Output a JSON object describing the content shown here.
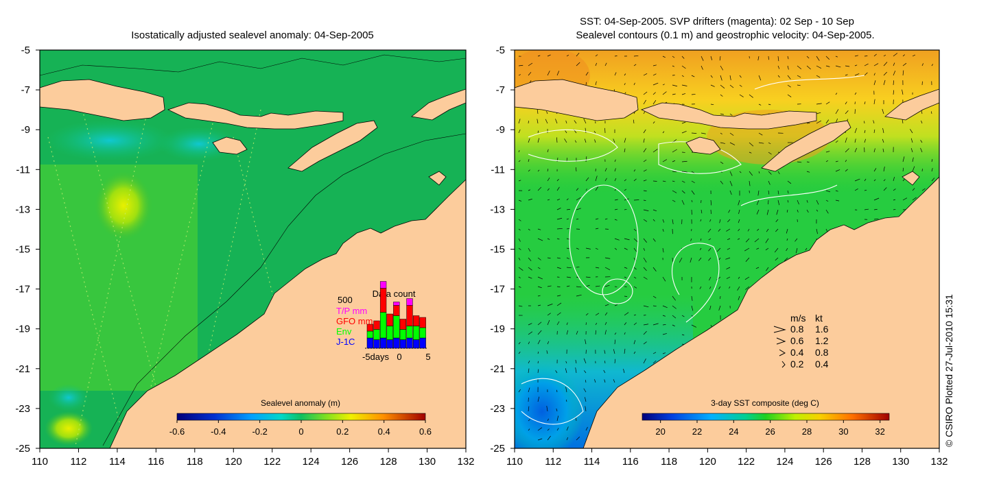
{
  "left_panel": {
    "title": "Isostatically adjusted sealevel anomaly: 04-Sep-2005",
    "colorbar": {
      "label": "Sealevel anomaly (m)",
      "ticks": [
        "-0.6",
        "-0.4",
        "-0.2",
        "0",
        "0.2",
        "0.4",
        "0.6"
      ],
      "range": [
        -0.6,
        0.6
      ]
    },
    "data_count": {
      "title": "Data count",
      "ymax_label": "500",
      "legend": [
        {
          "label": "T/P mm",
          "color": "#ff00ff"
        },
        {
          "label": "GFO mm",
          "color": "#ff0000"
        },
        {
          "label": "Env",
          "color": "#00ff00"
        },
        {
          "label": "J-1C",
          "color": "#0000ff"
        }
      ],
      "xlabels": [
        "-5days",
        "0",
        "5"
      ],
      "bars": [
        {
          "day": -5,
          "jc": 60,
          "env": 40,
          "gfo": 40,
          "tp": 0
        },
        {
          "day": -4,
          "jc": 50,
          "env": 60,
          "gfo": 50,
          "tp": 0
        },
        {
          "day": -3,
          "jc": 60,
          "env": 150,
          "gfo": 140,
          "tp": 40
        },
        {
          "day": -2,
          "jc": 50,
          "env": 80,
          "gfo": 70,
          "tp": 0
        },
        {
          "day": -1,
          "jc": 60,
          "env": 130,
          "gfo": 60,
          "tp": 20
        },
        {
          "day": 0,
          "jc": 50,
          "env": 60,
          "gfo": 60,
          "tp": 0
        },
        {
          "day": 1,
          "jc": 60,
          "env": 70,
          "gfo": 120,
          "tp": 40
        },
        {
          "day": 2,
          "jc": 50,
          "env": 80,
          "gfo": 60,
          "tp": 0
        },
        {
          "day": 3,
          "jc": 60,
          "env": 60,
          "gfo": 60,
          "tp": 0
        }
      ]
    }
  },
  "right_panel": {
    "title_line1": "SST: 04-Sep-2005. SVP drifters (magenta): 02 Sep - 10 Sep",
    "title_line2": "Sealevel contours (0.1 m) and geostrophic velocity: 04-Sep-2005.",
    "colorbar": {
      "label": "3-day SST composite (deg C)",
      "ticks": [
        "20",
        "22",
        "24",
        "26",
        "28",
        "30",
        "32"
      ],
      "range": [
        19,
        32.5
      ]
    },
    "velocity_legend": {
      "header_ms": "m/s",
      "header_kt": "kt",
      "rows": [
        {
          "ms": "0.8",
          "kt": "1.6"
        },
        {
          "ms": "0.6",
          "kt": "1.2"
        },
        {
          "ms": "0.4",
          "kt": "0.8"
        },
        {
          "ms": "0.2",
          "kt": "0.4"
        }
      ]
    },
    "credit": "© CSIRO Plotted 27-Jul-2010 15:31"
  },
  "axes": {
    "lon_ticks": [
      "110",
      "112",
      "114",
      "116",
      "118",
      "120",
      "122",
      "124",
      "126",
      "128",
      "130",
      "132"
    ],
    "lat_ticks": [
      "-5",
      "-7",
      "-9",
      "-11",
      "-13",
      "-15",
      "-17",
      "-19",
      "-21",
      "-23",
      "-25"
    ],
    "lon_range": [
      110,
      132
    ],
    "lat_range": [
      -25,
      -5
    ]
  },
  "colors": {
    "land": "#fccc9c",
    "sla_ocean": "#16b255",
    "sst_ocean": "#26cc40",
    "sst_warm": "#f0c020"
  }
}
